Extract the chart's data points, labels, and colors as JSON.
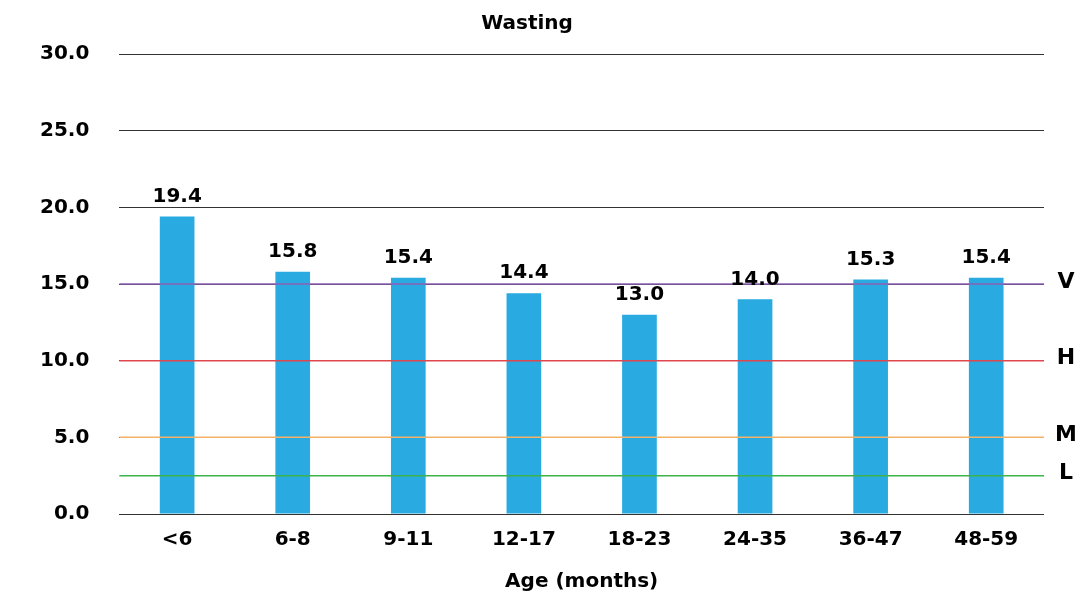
{
  "chart_data": {
    "type": "bar",
    "title": "Wasting",
    "xlabel": "Age (months)",
    "categories": [
      "<6",
      "6-8",
      "9-11",
      "12-17",
      "18-23",
      "24-35",
      "36-47",
      "48-59"
    ],
    "values": [
      19.4,
      15.8,
      15.4,
      14.4,
      13.0,
      14.0,
      15.3,
      15.4
    ],
    "value_labels": [
      "19.4",
      "15.8",
      "15.4",
      "14.4",
      "13.0",
      "14.0",
      "15.3",
      "15.4"
    ],
    "color": "#29abe2",
    "ylim": [
      0,
      30
    ],
    "yticks": [
      {
        "value": 0,
        "label": "0.0"
      },
      {
        "value": 5,
        "label": "5.0"
      },
      {
        "value": 10,
        "label": "10.0"
      },
      {
        "value": 15,
        "label": "15.0"
      },
      {
        "value": 20,
        "label": "20.0"
      },
      {
        "value": 25,
        "label": "25.0"
      },
      {
        "value": 30,
        "label": "30.0"
      }
    ],
    "grid": "y",
    "ref_lines": [
      {
        "axis": "y",
        "value": 15,
        "label": "V",
        "color": "#8e5fb5"
      },
      {
        "axis": "y",
        "value": 10,
        "label": "H",
        "color": "#e0474c"
      },
      {
        "axis": "y",
        "value": 5,
        "label": "M",
        "color": "#f5b266"
      },
      {
        "axis": "y",
        "value": 2.5,
        "label": "L",
        "color": "#3cb44b"
      }
    ]
  }
}
